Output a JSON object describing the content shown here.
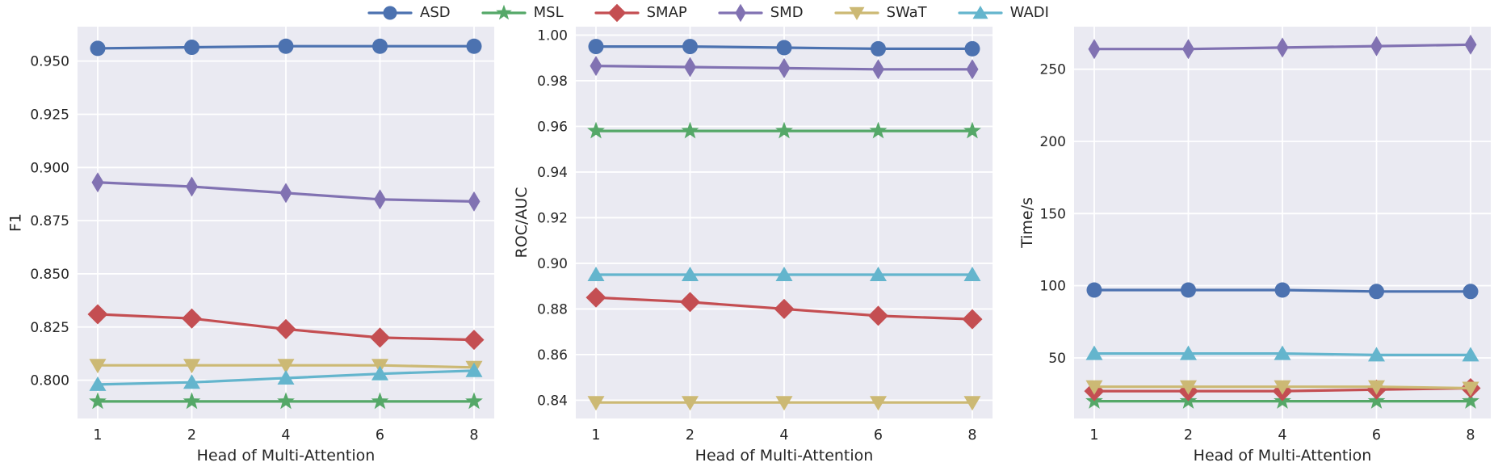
{
  "figure": {
    "background": "#ffffff",
    "panel_background": "#eaeaf2",
    "grid_color": "#ffffff",
    "text_color": "#262626"
  },
  "legend": {
    "position": "top-center",
    "entries": [
      {
        "label": "ASD",
        "marker": "circle",
        "color": "#4C72B0"
      },
      {
        "label": "MSL",
        "marker": "star",
        "color": "#55A868"
      },
      {
        "label": "SMAP",
        "marker": "diamond",
        "color": "#C44E52"
      },
      {
        "label": "SMD",
        "marker": "thin-diamond",
        "color": "#8172B2"
      },
      {
        "label": "SWaT",
        "marker": "triangle-down",
        "color": "#CCB974"
      },
      {
        "label": "WADI",
        "marker": "triangle-up",
        "color": "#64B5CD"
      }
    ]
  },
  "chart_data": [
    {
      "type": "line",
      "title": "",
      "xlabel": "Head of Multi-Attention",
      "ylabel": "F1",
      "x_categories": [
        "1",
        "2",
        "4",
        "6",
        "8"
      ],
      "ylim": [
        0.782,
        0.9662
      ],
      "yticks": [
        0.8,
        0.825,
        0.85,
        0.875,
        0.9,
        0.925,
        0.95
      ],
      "ytick_labels": [
        "0.800",
        "0.825",
        "0.850",
        "0.875",
        "0.900",
        "0.925",
        "0.950"
      ],
      "grid": true,
      "legend_position": "figure-top-center",
      "series": [
        {
          "name": "ASD",
          "values": [
            0.956,
            0.9565,
            0.957,
            0.957,
            0.957
          ]
        },
        {
          "name": "MSL",
          "values": [
            0.79,
            0.79,
            0.79,
            0.79,
            0.79
          ]
        },
        {
          "name": "SMAP",
          "values": [
            0.831,
            0.829,
            0.824,
            0.82,
            0.819
          ]
        },
        {
          "name": "SMD",
          "values": [
            0.893,
            0.891,
            0.888,
            0.885,
            0.884
          ]
        },
        {
          "name": "SWaT",
          "values": [
            0.807,
            0.807,
            0.807,
            0.807,
            0.806
          ]
        },
        {
          "name": "WADI",
          "values": [
            0.798,
            0.799,
            0.801,
            0.803,
            0.8045
          ]
        }
      ]
    },
    {
      "type": "line",
      "title": "",
      "xlabel": "Head of Multi-Attention",
      "ylabel": "ROC/AUC",
      "x_categories": [
        "1",
        "2",
        "4",
        "6",
        "8"
      ],
      "ylim": [
        0.832,
        1.0037
      ],
      "yticks": [
        0.84,
        0.86,
        0.88,
        0.9,
        0.92,
        0.94,
        0.96,
        0.98,
        1.0
      ],
      "ytick_labels": [
        "0.84",
        "0.86",
        "0.88",
        "0.90",
        "0.92",
        "0.94",
        "0.96",
        "0.98",
        "1.00"
      ],
      "grid": true,
      "legend_position": "figure-top-center",
      "series": [
        {
          "name": "ASD",
          "values": [
            0.995,
            0.995,
            0.9945,
            0.994,
            0.994
          ]
        },
        {
          "name": "MSL",
          "values": [
            0.958,
            0.958,
            0.958,
            0.958,
            0.958
          ]
        },
        {
          "name": "SMAP",
          "values": [
            0.885,
            0.883,
            0.88,
            0.877,
            0.8755
          ]
        },
        {
          "name": "SMD",
          "values": [
            0.9865,
            0.986,
            0.9855,
            0.985,
            0.985
          ]
        },
        {
          "name": "SWaT",
          "values": [
            0.839,
            0.839,
            0.839,
            0.839,
            0.839
          ]
        },
        {
          "name": "WADI",
          "values": [
            0.895,
            0.895,
            0.895,
            0.895,
            0.895
          ]
        }
      ]
    },
    {
      "type": "line",
      "title": "",
      "xlabel": "Head of Multi-Attention",
      "ylabel": "Time/s",
      "x_categories": [
        "1",
        "2",
        "4",
        "6",
        "8"
      ],
      "ylim": [
        8,
        279.5
      ],
      "yticks": [
        50,
        100,
        150,
        200,
        250
      ],
      "ytick_labels": [
        "50",
        "100",
        "150",
        "200",
        "250"
      ],
      "grid": true,
      "legend_position": "figure-top-center",
      "series": [
        {
          "name": "ASD",
          "values": [
            97,
            97,
            97,
            96,
            96
          ]
        },
        {
          "name": "MSL",
          "values": [
            20,
            20,
            20,
            20,
            20
          ]
        },
        {
          "name": "SMAP",
          "values": [
            27,
            27,
            27,
            28,
            29
          ]
        },
        {
          "name": "SMD",
          "values": [
            264,
            264,
            265,
            266,
            267
          ]
        },
        {
          "name": "SWaT",
          "values": [
            30,
            30,
            30,
            30,
            29
          ]
        },
        {
          "name": "WADI",
          "values": [
            53,
            53,
            53,
            52,
            52
          ]
        }
      ]
    }
  ]
}
